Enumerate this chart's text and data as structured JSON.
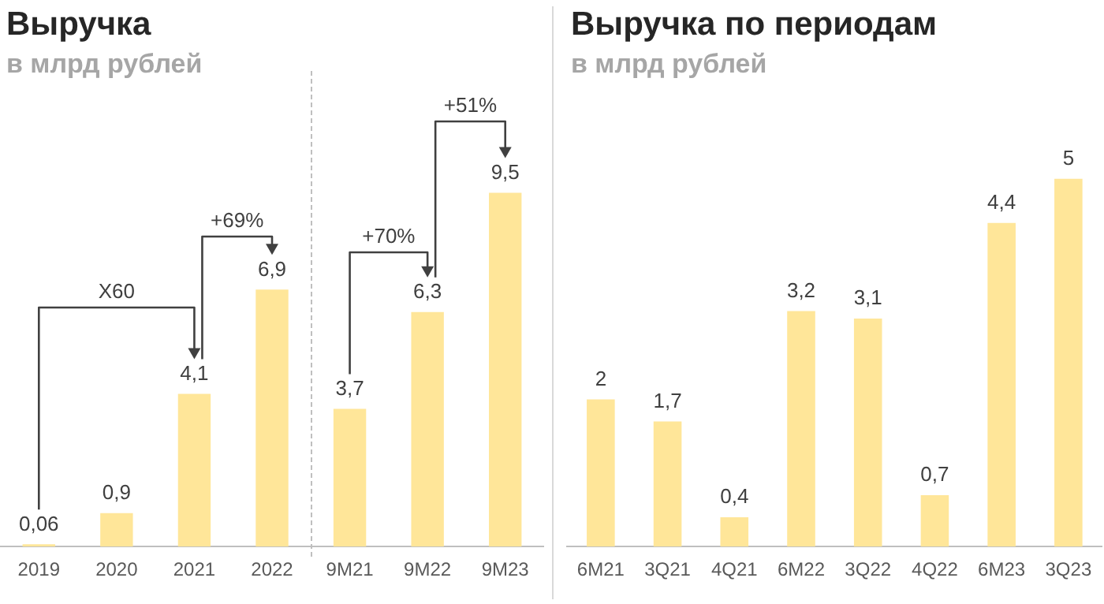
{
  "chart_data": [
    {
      "type": "bar",
      "title": "Выручка",
      "subtitle": "в млрд рублей",
      "categories": [
        "2019",
        "2020",
        "2021",
        "2022",
        "9M21",
        "9M22",
        "9M23"
      ],
      "values": [
        0.06,
        0.9,
        4.1,
        6.9,
        3.7,
        6.3,
        9.5
      ],
      "value_labels": [
        "0,06",
        "0,9",
        "4,1",
        "6,9",
        "3,7",
        "6,3",
        "9,5"
      ],
      "color": "#ffe699",
      "annotations": [
        "X60",
        "+69%",
        "+70%",
        "+51%"
      ]
    },
    {
      "type": "bar",
      "title": "Выручка по периодам",
      "subtitle": "в млрд рублей",
      "categories": [
        "6M21",
        "3Q21",
        "4Q21",
        "6M22",
        "3Q22",
        "4Q22",
        "6M23",
        "3Q23"
      ],
      "values": [
        2,
        1.7,
        0.4,
        3.2,
        3.1,
        0.7,
        4.4,
        5
      ],
      "value_labels": [
        "2",
        "1,7",
        "0,4",
        "3,2",
        "3,1",
        "0,7",
        "4,4",
        "5"
      ],
      "color": "#ffe699"
    }
  ]
}
